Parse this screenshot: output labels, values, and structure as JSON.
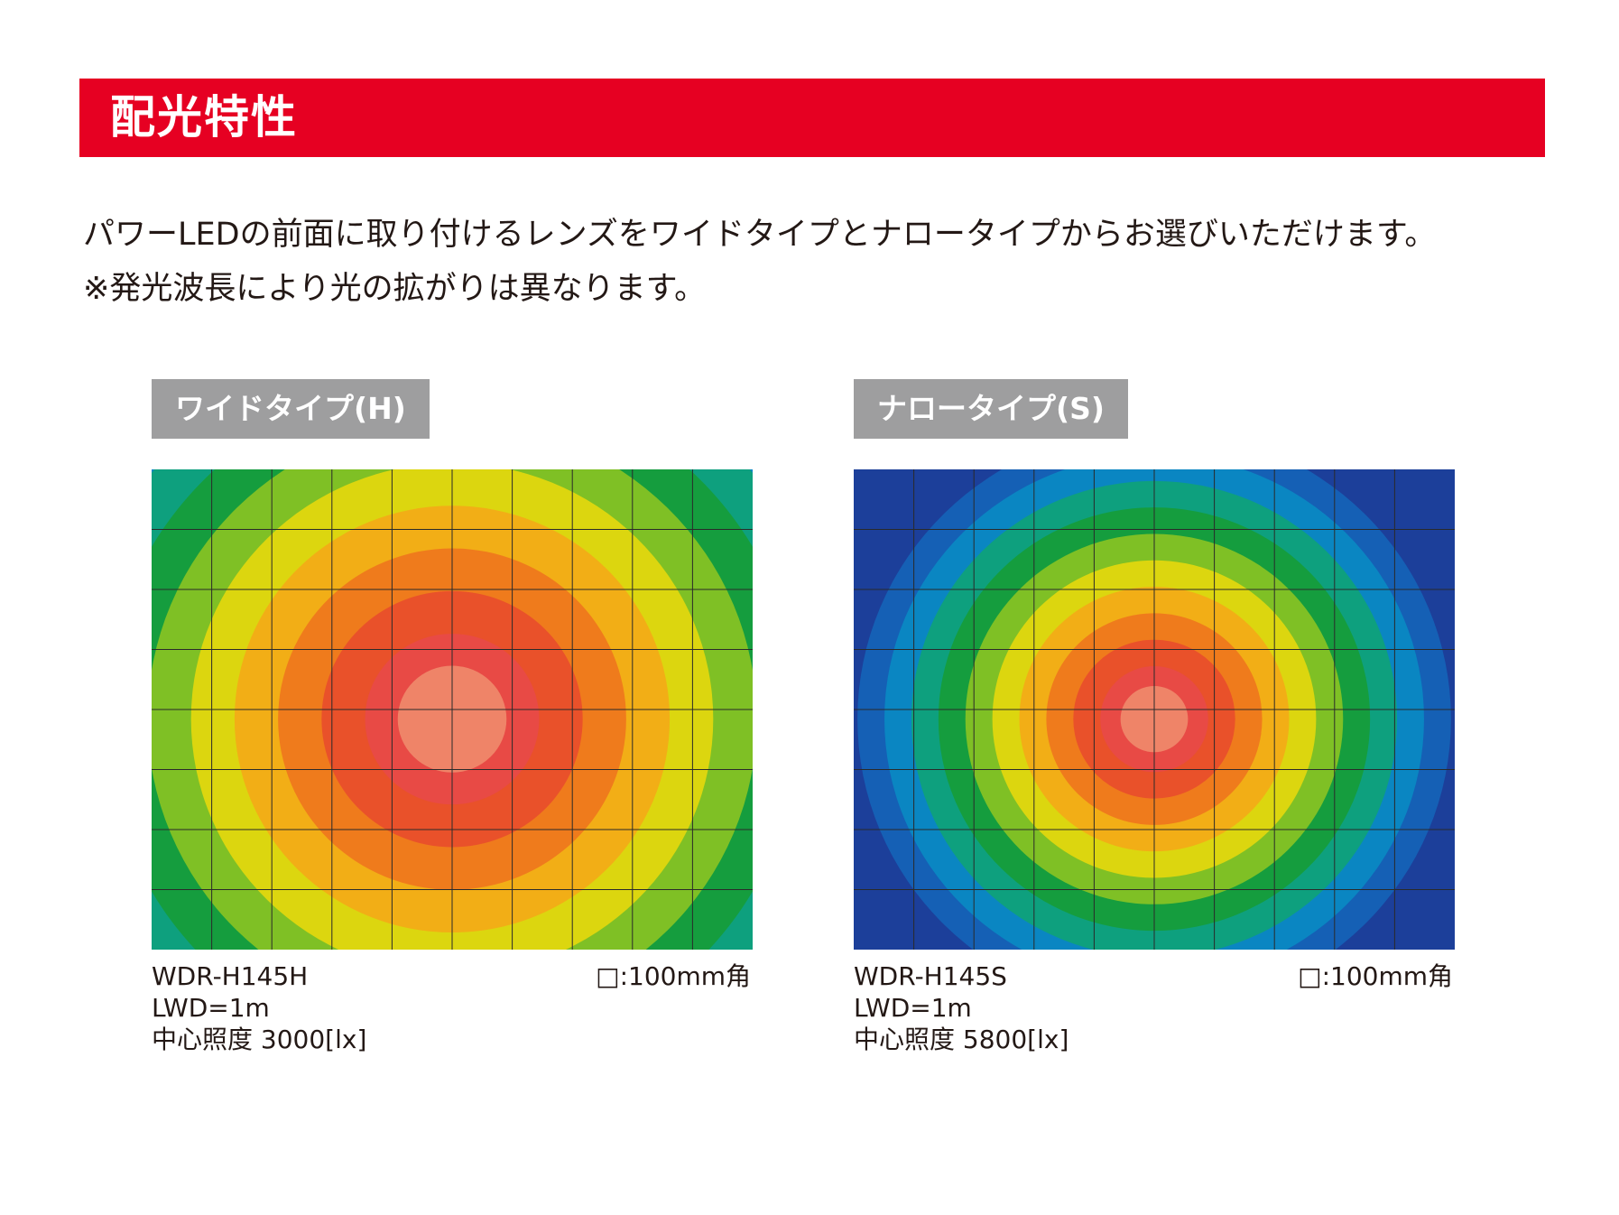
{
  "header": {
    "title": "配光特性"
  },
  "intro": {
    "line1": "パワーLEDの前面に取り付けるレンズをワイドタイプとナロータイプからお選びいただけます。",
    "line2": "※発光波長により光の拡がりは異なります。"
  },
  "panels": [
    {
      "label": "ワイドタイプ(H)",
      "model": "WDR-H145H",
      "lwd": "LWD=1m",
      "illuminance_label": "中心照度",
      "illuminance": "3000[lx]",
      "scale": "□:100mm角",
      "spread": 1.0
    },
    {
      "label": "ナロータイプ(S)",
      "model": "WDR-H145S",
      "lwd": "LWD=1m",
      "illuminance_label": "中心照度",
      "illuminance": "5800[lx]",
      "scale": "□:100mm角",
      "spread": 0.62
    }
  ],
  "colors": {
    "header": "#e60022",
    "label_bg": "#9e9e9f",
    "grid": "#2a2a2a",
    "heat_levels": [
      "#1c3f9a",
      "#1560b5",
      "#0a86c2",
      "#0ea07e",
      "#159d3e",
      "#7fc025",
      "#dcd60f",
      "#f2ae16",
      "#ef7b1c",
      "#e9512a",
      "#e84a45",
      "#ef8468"
    ]
  }
}
